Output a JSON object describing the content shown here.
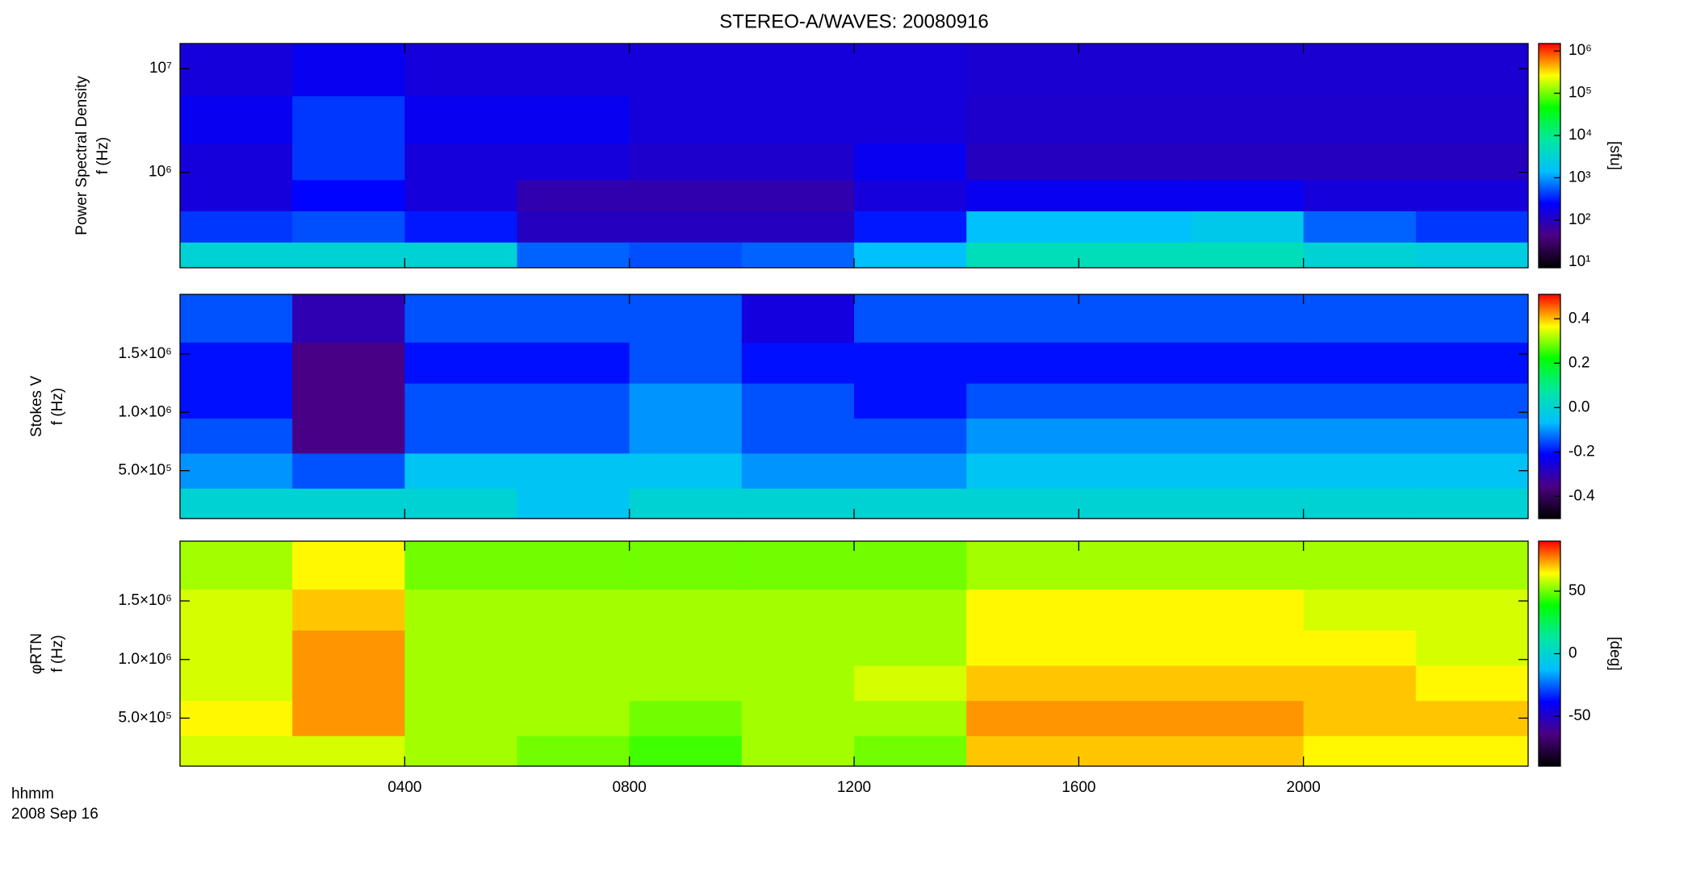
{
  "title": "STEREO-A/WAVES: 20080916",
  "time_label": "hhmm",
  "date_label": "2008 Sep 16",
  "chart_data": [
    {
      "type": "heatmap",
      "ylabel": [
        "Power Spectral Density",
        "f (Hz)"
      ],
      "yscale": "log",
      "ylim": [
        120000,
        17500000
      ],
      "yticks": [
        {
          "value": 1000000,
          "label": "10⁶"
        },
        {
          "value": 10000000,
          "label": "10⁷"
        }
      ],
      "zscale": "log",
      "zlim": [
        7.4,
        1500000
      ],
      "zticks": [
        {
          "value": 10,
          "label": "10¹"
        },
        {
          "value": 100,
          "label": "10²"
        },
        {
          "value": 1000,
          "label": "10³"
        },
        {
          "value": 10000,
          "label": "10⁴"
        },
        {
          "value": 100000,
          "label": "10⁵"
        },
        {
          "value": 1000000,
          "label": "10⁶"
        }
      ],
      "zlabel": "[sfu]",
      "colormap": [
        "#000000",
        "#4b0082",
        "#0000ff",
        "#00bfff",
        "#00e8a0",
        "#00ff00",
        "#ffff00",
        "#ff0000"
      ],
      "x": [
        1,
        3,
        5,
        7,
        9,
        11,
        13,
        15,
        17,
        19,
        21,
        23
      ],
      "y": [
        150000,
        300000,
        600000,
        1200000,
        3000000,
        10000000
      ],
      "values": [
        [
          3000,
          3000,
          3000,
          600,
          500,
          600,
          1500,
          5000,
          5000,
          5000,
          3000,
          2500
        ],
        [
          400,
          500,
          300,
          100,
          100,
          100,
          300,
          1500,
          1500,
          2000,
          600,
          400
        ],
        [
          150,
          250,
          150,
          80,
          80,
          80,
          150,
          200,
          200,
          200,
          150,
          150
        ],
        [
          150,
          400,
          150,
          150,
          120,
          120,
          200,
          100,
          100,
          100,
          100,
          100
        ],
        [
          200,
          400,
          200,
          200,
          150,
          150,
          150,
          120,
          120,
          120,
          120,
          120
        ],
        [
          150,
          200,
          150,
          150,
          150,
          150,
          150,
          130,
          130,
          130,
          130,
          130
        ]
      ]
    },
    {
      "type": "heatmap",
      "ylabel": [
        "Stokes V",
        "f (Hz)"
      ],
      "yscale": "linear",
      "ylim": [
        90000,
        2010000
      ],
      "yticks": [
        {
          "value": 500000,
          "label": "5.0×10⁵"
        },
        {
          "value": 1000000,
          "label": "1.0×10⁶"
        },
        {
          "value": 1500000,
          "label": "1.5×10⁶"
        }
      ],
      "zscale": "linear",
      "zlim": [
        -0.5,
        0.51
      ],
      "zticks": [
        0.4,
        0.2,
        {
          "value": 0,
          "label": "0.0"
        },
        -0.2,
        -0.4
      ],
      "colormap": [
        "#000000",
        "#4b0082",
        "#0000ff",
        "#00bfff",
        "#00e8a0",
        "#00ff00",
        "#ffff00",
        "#ff0000"
      ],
      "x": [
        1,
        3,
        5,
        7,
        9,
        11,
        13,
        15,
        17,
        19,
        21,
        23
      ],
      "y": [
        200000,
        500000,
        800000,
        1100000,
        1400000,
        1800000
      ],
      "values": [
        [
          0.0,
          0.0,
          0.0,
          -0.05,
          0.0,
          0.0,
          0.0,
          0.0,
          0.0,
          0.0,
          0.0,
          0.0
        ],
        [
          -0.1,
          -0.15,
          -0.05,
          -0.05,
          -0.05,
          -0.1,
          -0.1,
          -0.05,
          -0.05,
          -0.05,
          -0.05,
          -0.05
        ],
        [
          -0.15,
          -0.35,
          -0.15,
          -0.15,
          -0.1,
          -0.15,
          -0.15,
          -0.1,
          -0.1,
          -0.1,
          -0.1,
          -0.1
        ],
        [
          -0.2,
          -0.35,
          -0.15,
          -0.15,
          -0.1,
          -0.15,
          -0.2,
          -0.15,
          -0.15,
          -0.15,
          -0.15,
          -0.15
        ],
        [
          -0.2,
          -0.35,
          -0.2,
          -0.2,
          -0.15,
          -0.2,
          -0.2,
          -0.2,
          -0.2,
          -0.2,
          -0.2,
          -0.2
        ],
        [
          -0.15,
          -0.3,
          -0.15,
          -0.15,
          -0.15,
          -0.25,
          -0.15,
          -0.15,
          -0.15,
          -0.15,
          -0.15,
          -0.15
        ]
      ]
    },
    {
      "type": "heatmap",
      "ylabel": [
        "φRTN",
        "f (Hz)"
      ],
      "yscale": "linear",
      "ylim": [
        90000,
        2010000
      ],
      "yticks": [
        {
          "value": 500000,
          "label": "5.0×10⁵"
        },
        {
          "value": 1000000,
          "label": "1.0×10⁶"
        },
        {
          "value": 1500000,
          "label": "1.5×10⁶"
        }
      ],
      "xlim": [
        0,
        24
      ],
      "xticks": [
        {
          "value": 4,
          "label": "0400"
        },
        {
          "value": 8,
          "label": "0800"
        },
        {
          "value": 12,
          "label": "1200"
        },
        {
          "value": 16,
          "label": "1600"
        },
        {
          "value": 20,
          "label": "2000"
        }
      ],
      "zscale": "linear",
      "zlim": [
        -90,
        90
      ],
      "zticks": [
        50,
        0,
        -50
      ],
      "zlabel": "[deg]",
      "colormap": [
        "#000000",
        "#4b0082",
        "#0000ff",
        "#00bfff",
        "#00e8a0",
        "#00ff00",
        "#ffff00",
        "#ff0000"
      ],
      "x": [
        1,
        3,
        5,
        7,
        9,
        11,
        13,
        15,
        17,
        19,
        21,
        23
      ],
      "y": [
        200000,
        500000,
        800000,
        1100000,
        1400000,
        1800000
      ],
      "values": [
        [
          60,
          60,
          55,
          50,
          45,
          55,
          50,
          70,
          70,
          70,
          65,
          65
        ],
        [
          65,
          75,
          55,
          55,
          50,
          55,
          55,
          75,
          75,
          75,
          70,
          70
        ],
        [
          60,
          75,
          55,
          55,
          55,
          55,
          60,
          70,
          70,
          70,
          70,
          65
        ],
        [
          60,
          75,
          55,
          55,
          55,
          55,
          55,
          65,
          65,
          65,
          65,
          60
        ],
        [
          60,
          70,
          55,
          55,
          55,
          55,
          55,
          65,
          65,
          65,
          60,
          60
        ],
        [
          55,
          65,
          50,
          50,
          50,
          50,
          50,
          55,
          55,
          55,
          55,
          55
        ]
      ]
    }
  ]
}
